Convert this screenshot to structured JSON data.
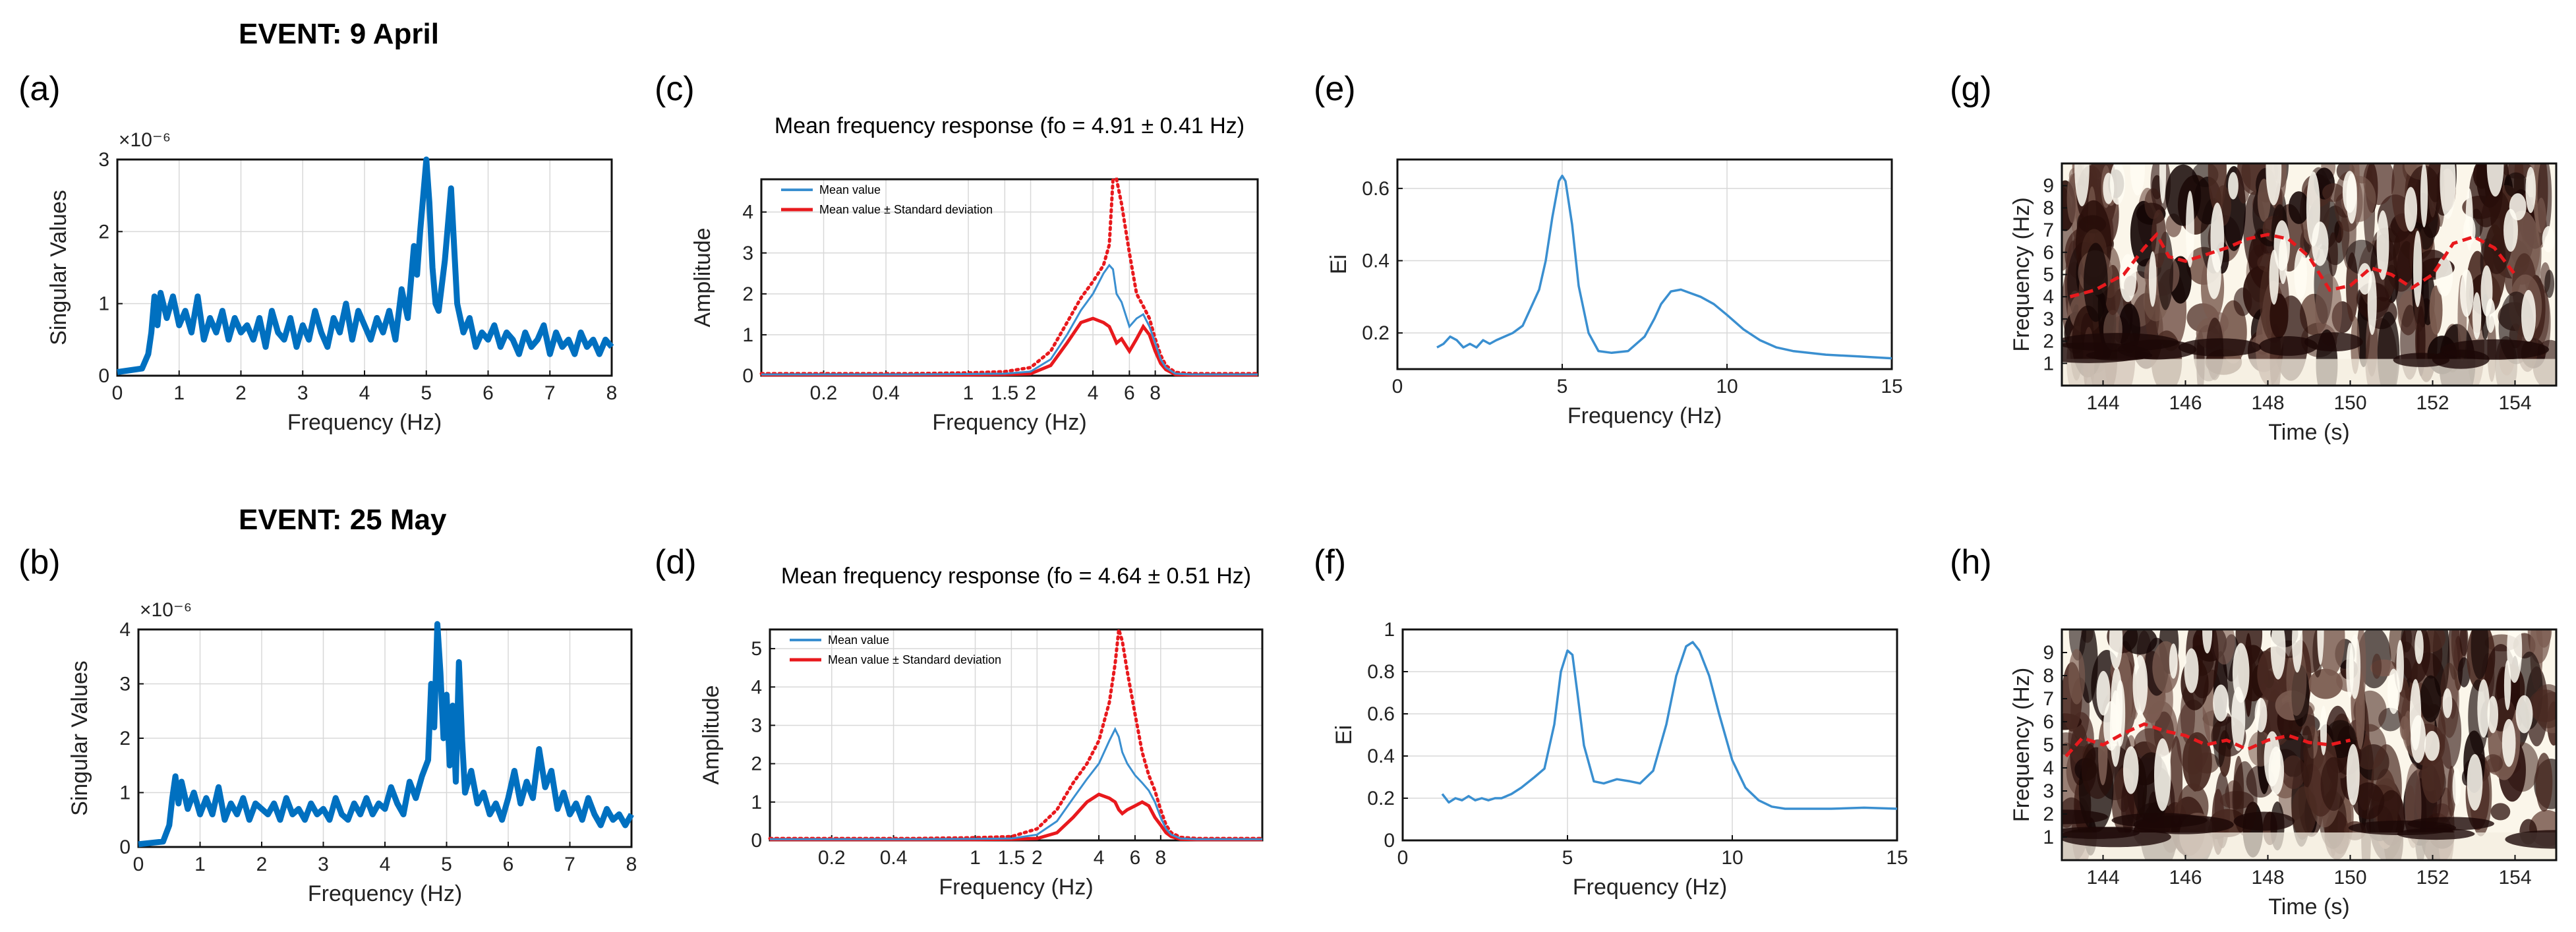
{
  "events": {
    "top": "EVENT: 9 April",
    "bottom": "EVENT: 25 May"
  },
  "colors": {
    "blue": "#0070c0",
    "red": "#e8191d",
    "thin_blue": "#3a8fd0",
    "grid": "#d8d8d8"
  },
  "chart_data": [
    {
      "panel": "(a)",
      "type": "line",
      "xlabel": "Frequency (Hz)",
      "ylabel": "Singular Values",
      "exponent": "×10⁻⁶",
      "xlim": [
        0,
        8
      ],
      "ylim": [
        0,
        3
      ],
      "xticks": [
        "0",
        "1",
        "2",
        "3",
        "4",
        "5",
        "6",
        "7",
        "8"
      ],
      "yticks": [
        "0",
        "1",
        "2",
        "3"
      ],
      "x": [
        0,
        0.4,
        0.5,
        0.55,
        0.6,
        0.65,
        0.7,
        0.8,
        0.9,
        1.0,
        1.1,
        1.2,
        1.3,
        1.4,
        1.5,
        1.6,
        1.7,
        1.8,
        1.9,
        2.0,
        2.1,
        2.2,
        2.3,
        2.4,
        2.5,
        2.6,
        2.7,
        2.8,
        2.9,
        3.0,
        3.1,
        3.2,
        3.3,
        3.4,
        3.5,
        3.6,
        3.7,
        3.8,
        3.9,
        4.0,
        4.1,
        4.2,
        4.3,
        4.4,
        4.5,
        4.6,
        4.7,
        4.8,
        4.85,
        4.9,
        4.95,
        5.0,
        5.05,
        5.1,
        5.15,
        5.2,
        5.3,
        5.4,
        5.45,
        5.5,
        5.6,
        5.7,
        5.8,
        5.9,
        6.0,
        6.1,
        6.2,
        6.3,
        6.4,
        6.5,
        6.6,
        6.7,
        6.8,
        6.9,
        7.0,
        7.1,
        7.2,
        7.3,
        7.4,
        7.5,
        7.6,
        7.7,
        7.8,
        7.9,
        8.0
      ],
      "y": [
        0.05,
        0.1,
        0.3,
        0.6,
        1.1,
        0.7,
        1.15,
        0.8,
        1.1,
        0.7,
        0.9,
        0.6,
        1.1,
        0.5,
        0.8,
        0.6,
        0.9,
        0.5,
        0.8,
        0.6,
        0.7,
        0.5,
        0.8,
        0.4,
        0.9,
        0.6,
        0.5,
        0.8,
        0.4,
        0.7,
        0.5,
        0.9,
        0.6,
        0.4,
        0.8,
        0.6,
        1.0,
        0.5,
        0.9,
        0.7,
        0.5,
        0.8,
        0.6,
        0.9,
        0.5,
        1.2,
        0.8,
        1.8,
        1.4,
        2.0,
        2.5,
        3.0,
        2.4,
        1.5,
        1.0,
        0.9,
        1.6,
        2.6,
        1.8,
        1.0,
        0.6,
        0.8,
        0.4,
        0.6,
        0.5,
        0.7,
        0.4,
        0.6,
        0.5,
        0.3,
        0.6,
        0.4,
        0.5,
        0.7,
        0.3,
        0.6,
        0.4,
        0.5,
        0.3,
        0.6,
        0.4,
        0.5,
        0.3,
        0.5,
        0.4
      ]
    },
    {
      "panel": "(b)",
      "type": "line",
      "xlabel": "Frequency (Hz)",
      "ylabel": "Singular Values",
      "exponent": "×10⁻⁶",
      "xlim": [
        0,
        8
      ],
      "ylim": [
        0,
        4
      ],
      "xticks": [
        "0",
        "1",
        "2",
        "3",
        "4",
        "5",
        "6",
        "7",
        "8"
      ],
      "yticks": [
        "0",
        "1",
        "2",
        "3",
        "4"
      ],
      "x": [
        0,
        0.4,
        0.5,
        0.55,
        0.6,
        0.65,
        0.7,
        0.8,
        0.9,
        1.0,
        1.1,
        1.2,
        1.3,
        1.4,
        1.5,
        1.6,
        1.7,
        1.8,
        1.9,
        2.0,
        2.1,
        2.2,
        2.3,
        2.4,
        2.5,
        2.6,
        2.7,
        2.8,
        2.9,
        3.0,
        3.1,
        3.2,
        3.3,
        3.4,
        3.5,
        3.6,
        3.7,
        3.8,
        3.9,
        4.0,
        4.1,
        4.2,
        4.3,
        4.4,
        4.5,
        4.6,
        4.7,
        4.75,
        4.8,
        4.85,
        4.9,
        4.95,
        5.0,
        5.05,
        5.1,
        5.15,
        5.2,
        5.25,
        5.3,
        5.4,
        5.5,
        5.6,
        5.7,
        5.8,
        5.9,
        6.0,
        6.1,
        6.2,
        6.3,
        6.4,
        6.5,
        6.6,
        6.7,
        6.8,
        6.9,
        7.0,
        7.1,
        7.2,
        7.3,
        7.4,
        7.5,
        7.6,
        7.7,
        7.8,
        7.9,
        8.0
      ],
      "y": [
        0.05,
        0.1,
        0.4,
        0.9,
        1.3,
        0.8,
        1.2,
        0.7,
        1.0,
        0.6,
        0.9,
        0.6,
        1.1,
        0.5,
        0.8,
        0.6,
        0.9,
        0.5,
        0.8,
        0.7,
        0.6,
        0.8,
        0.5,
        0.9,
        0.6,
        0.7,
        0.5,
        0.8,
        0.6,
        0.7,
        0.5,
        0.9,
        0.6,
        0.5,
        0.8,
        0.6,
        0.9,
        0.6,
        0.8,
        0.7,
        1.1,
        0.8,
        0.6,
        1.2,
        0.9,
        1.3,
        1.6,
        3.0,
        2.2,
        4.1,
        3.2,
        2.0,
        2.8,
        1.5,
        2.6,
        1.2,
        3.4,
        2.0,
        1.0,
        1.4,
        0.8,
        1.0,
        0.6,
        0.8,
        0.5,
        0.9,
        1.4,
        0.8,
        1.2,
        0.9,
        1.8,
        1.1,
        1.4,
        0.7,
        1.0,
        0.6,
        0.8,
        0.5,
        0.9,
        0.6,
        0.4,
        0.7,
        0.5,
        0.6,
        0.4,
        0.6
      ]
    },
    {
      "panel": "(c)",
      "type": "line",
      "title": "Mean frequency response (fo = 4.91 ± 0.41 Hz)",
      "xlabel": "Frequency (Hz)",
      "ylabel": "Amplitude",
      "xscale": "log",
      "xlim": [
        0.1,
        25
      ],
      "ylim": [
        0,
        4.8
      ],
      "xticks": [
        "0.2",
        "0.4",
        "1",
        "1.5",
        "2",
        "4",
        "6",
        "8"
      ],
      "xtick_values": [
        0.2,
        0.4,
        1,
        1.5,
        2,
        4,
        6,
        8
      ],
      "yticks": [
        "0",
        "1",
        "2",
        "3",
        "4"
      ],
      "legend": [
        "Mean value",
        "Mean value ± Standard deviation"
      ],
      "x": [
        0.1,
        0.5,
        1,
        1.5,
        2,
        2.5,
        3,
        3.5,
        4,
        4.5,
        4.8,
        5.0,
        5.2,
        5.5,
        6,
        6.5,
        7,
        7.5,
        8,
        8.5,
        9,
        10,
        12,
        15,
        20,
        25
      ],
      "mean": [
        0.03,
        0.03,
        0.04,
        0.05,
        0.1,
        0.4,
        1.0,
        1.6,
        2.0,
        2.5,
        2.7,
        2.6,
        2.0,
        1.8,
        1.2,
        1.4,
        1.5,
        1.2,
        0.8,
        0.4,
        0.2,
        0.05,
        0.03,
        0.03,
        0.03,
        0.03
      ],
      "upper": [
        0.05,
        0.05,
        0.07,
        0.1,
        0.2,
        0.6,
        1.3,
        1.9,
        2.3,
        2.7,
        3.2,
        4.8,
        4.8,
        4.2,
        3.0,
        2.0,
        1.7,
        1.4,
        0.9,
        0.5,
        0.25,
        0.08,
        0.05,
        0.05,
        0.05,
        0.05
      ],
      "lower": [
        0.02,
        0.02,
        0.02,
        0.03,
        0.05,
        0.25,
        0.8,
        1.3,
        1.4,
        1.3,
        1.2,
        1.0,
        0.8,
        0.9,
        0.6,
        0.9,
        1.2,
        1.0,
        0.6,
        0.3,
        0.15,
        0.03,
        0.02,
        0.02,
        0.02,
        0.02
      ]
    },
    {
      "panel": "(d)",
      "type": "line",
      "title": "Mean frequency response (fo = 4.64 ± 0.51 Hz)",
      "xlabel": "Frequency (Hz)",
      "ylabel": "Amplitude",
      "xscale": "log",
      "xlim": [
        0.1,
        25
      ],
      "ylim": [
        0,
        5.5
      ],
      "xticks": [
        "0.2",
        "0.4",
        "1",
        "1.5",
        "2",
        "4",
        "6",
        "8"
      ],
      "xtick_values": [
        0.2,
        0.4,
        1,
        1.5,
        2,
        4,
        6,
        8
      ],
      "yticks": [
        "0",
        "1",
        "2",
        "3",
        "4",
        "5"
      ],
      "legend": [
        "Mean value",
        "Mean value ± Standard deviation"
      ],
      "x": [
        0.1,
        0.5,
        1,
        1.5,
        2,
        2.5,
        3,
        3.5,
        4,
        4.5,
        4.8,
        5.0,
        5.2,
        5.5,
        6,
        6.5,
        7,
        7.5,
        8,
        8.5,
        9,
        10,
        12,
        15,
        20,
        25
      ],
      "mean": [
        0.03,
        0.03,
        0.04,
        0.05,
        0.15,
        0.5,
        1.1,
        1.6,
        2.0,
        2.6,
        2.9,
        2.7,
        2.3,
        2.0,
        1.7,
        1.5,
        1.3,
        1.0,
        0.6,
        0.3,
        0.15,
        0.05,
        0.03,
        0.03,
        0.03,
        0.03
      ],
      "upper": [
        0.05,
        0.05,
        0.07,
        0.1,
        0.3,
        0.8,
        1.5,
        2.0,
        2.6,
        3.6,
        4.6,
        5.5,
        5.2,
        4.4,
        3.3,
        2.3,
        1.7,
        1.3,
        0.8,
        0.4,
        0.2,
        0.08,
        0.05,
        0.05,
        0.05,
        0.05
      ],
      "lower": [
        0.02,
        0.02,
        0.02,
        0.03,
        0.05,
        0.2,
        0.6,
        1.0,
        1.2,
        1.1,
        1.0,
        0.8,
        0.7,
        0.8,
        0.9,
        1.0,
        0.9,
        0.6,
        0.4,
        0.2,
        0.1,
        0.03,
        0.02,
        0.02,
        0.02,
        0.02
      ]
    },
    {
      "panel": "(e)",
      "type": "line",
      "xlabel": "Frequency (Hz)",
      "ylabel": "Ei",
      "xlim": [
        0,
        15
      ],
      "ylim": [
        0.1,
        0.68
      ],
      "xticks": [
        "0",
        "5",
        "10",
        "15"
      ],
      "yticks": [
        "0.2",
        "0.4",
        "0.6"
      ],
      "ytick_values": [
        0.2,
        0.4,
        0.6
      ],
      "x": [
        1.2,
        1.4,
        1.6,
        1.8,
        2.0,
        2.2,
        2.4,
        2.6,
        2.8,
        3.0,
        3.5,
        3.8,
        4.0,
        4.3,
        4.5,
        4.7,
        4.9,
        5.0,
        5.1,
        5.3,
        5.5,
        5.8,
        6.1,
        6.5,
        7.0,
        7.5,
        7.8,
        8.0,
        8.3,
        8.6,
        8.9,
        9.2,
        9.6,
        10.0,
        10.5,
        11.0,
        11.5,
        12.0,
        13.0,
        14.0,
        15.0
      ],
      "y": [
        0.16,
        0.17,
        0.19,
        0.18,
        0.16,
        0.17,
        0.16,
        0.18,
        0.17,
        0.18,
        0.2,
        0.22,
        0.26,
        0.32,
        0.4,
        0.52,
        0.62,
        0.635,
        0.62,
        0.5,
        0.33,
        0.2,
        0.15,
        0.145,
        0.15,
        0.19,
        0.24,
        0.28,
        0.315,
        0.32,
        0.31,
        0.3,
        0.28,
        0.25,
        0.21,
        0.18,
        0.16,
        0.15,
        0.14,
        0.135,
        0.13
      ]
    },
    {
      "panel": "(f)",
      "type": "line",
      "xlabel": "Frequency (Hz)",
      "ylabel": "Ei",
      "xlim": [
        0,
        15
      ],
      "ylim": [
        0,
        1
      ],
      "xticks": [
        "0",
        "5",
        "10",
        "15"
      ],
      "yticks": [
        "0",
        "0.2",
        "0.4",
        "0.6",
        "0.8",
        "1"
      ],
      "ytick_values": [
        0,
        0.2,
        0.4,
        0.6,
        0.8,
        1
      ],
      "x": [
        1.2,
        1.4,
        1.6,
        1.8,
        2.0,
        2.2,
        2.4,
        2.6,
        2.8,
        3.0,
        3.3,
        3.6,
        4.0,
        4.3,
        4.6,
        4.8,
        5.0,
        5.15,
        5.3,
        5.5,
        5.8,
        6.1,
        6.5,
        6.9,
        7.2,
        7.6,
        8.0,
        8.3,
        8.6,
        8.8,
        9.0,
        9.3,
        9.6,
        10.0,
        10.4,
        10.8,
        11.2,
        11.6,
        12.0,
        13.0,
        14.0,
        15.0
      ],
      "y": [
        0.22,
        0.18,
        0.2,
        0.19,
        0.21,
        0.19,
        0.2,
        0.19,
        0.2,
        0.2,
        0.22,
        0.25,
        0.3,
        0.34,
        0.55,
        0.8,
        0.9,
        0.88,
        0.7,
        0.45,
        0.28,
        0.27,
        0.29,
        0.28,
        0.27,
        0.33,
        0.55,
        0.78,
        0.92,
        0.94,
        0.9,
        0.78,
        0.6,
        0.38,
        0.25,
        0.19,
        0.16,
        0.15,
        0.15,
        0.15,
        0.155,
        0.15
      ]
    },
    {
      "panel": "(g)",
      "type": "heatmap",
      "xlabel": "Time (s)",
      "ylabel": "Frequency (Hz)",
      "xlim": [
        143,
        155
      ],
      "ylim": [
        0,
        10
      ],
      "xticks": [
        "144",
        "146",
        "148",
        "150",
        "152",
        "154"
      ],
      "xtick_values": [
        144,
        146,
        148,
        150,
        152,
        154
      ],
      "yticks": [
        "1",
        "2",
        "3",
        "4",
        "5",
        "6",
        "7",
        "8",
        "9"
      ],
      "ytick_values": [
        1,
        2,
        3,
        4,
        5,
        6,
        7,
        8,
        9
      ],
      "ridge_x": [
        143.2,
        143.8,
        144.5,
        145.0,
        145.3,
        145.6,
        146.0,
        146.5,
        147.0,
        147.5,
        148.0,
        148.5,
        149.0,
        149.5,
        150.0,
        150.5,
        151.0,
        151.5,
        152.0,
        152.5,
        153.0,
        153.5,
        154.0
      ],
      "ridge_y": [
        4.0,
        4.3,
        5.0,
        6.2,
        6.8,
        5.8,
        5.6,
        5.9,
        6.2,
        6.6,
        6.8,
        6.6,
        5.8,
        4.3,
        4.5,
        5.3,
        5.0,
        4.4,
        5.0,
        6.4,
        6.7,
        6.2,
        5.0
      ]
    },
    {
      "panel": "(h)",
      "type": "heatmap",
      "xlabel": "Time (s)",
      "ylabel": "Frequency (Hz)",
      "xlim": [
        143,
        155
      ],
      "ylim": [
        0,
        10
      ],
      "xticks": [
        "144",
        "146",
        "148",
        "150",
        "152",
        "154"
      ],
      "xtick_values": [
        144,
        146,
        148,
        150,
        152,
        154
      ],
      "yticks": [
        "1",
        "2",
        "3",
        "4",
        "5",
        "6",
        "7",
        "8",
        "9"
      ],
      "ytick_values": [
        1,
        2,
        3,
        4,
        5,
        6,
        7,
        8,
        9
      ],
      "ridge_x": [
        143.1,
        143.5,
        144.0,
        144.5,
        145.0,
        145.5,
        146.0,
        146.5,
        147.0,
        147.5,
        148.0,
        148.5,
        149.0,
        149.5,
        150.0
      ],
      "ridge_y": [
        4.5,
        5.3,
        5.0,
        5.5,
        5.9,
        5.6,
        5.4,
        5.0,
        5.2,
        4.8,
        5.2,
        5.4,
        5.1,
        5.0,
        5.2
      ]
    }
  ]
}
